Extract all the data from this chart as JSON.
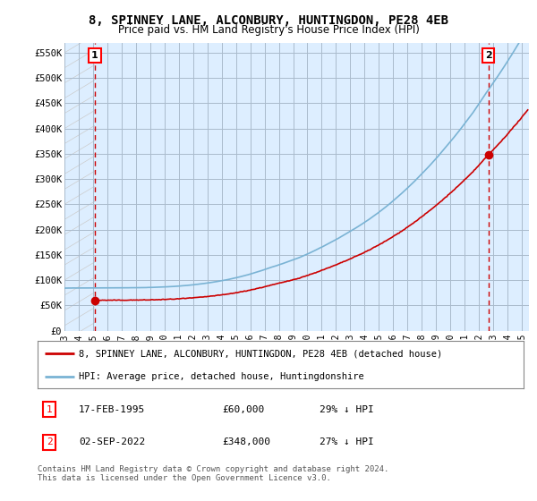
{
  "title": "8, SPINNEY LANE, ALCONBURY, HUNTINGDON, PE28 4EB",
  "subtitle": "Price paid vs. HM Land Registry's House Price Index (HPI)",
  "ylim": [
    0,
    570000
  ],
  "yticks": [
    0,
    50000,
    100000,
    150000,
    200000,
    250000,
    300000,
    350000,
    400000,
    450000,
    500000,
    550000
  ],
  "ytick_labels": [
    "£0",
    "£50K",
    "£100K",
    "£150K",
    "£200K",
    "£250K",
    "£300K",
    "£350K",
    "£400K",
    "£450K",
    "£500K",
    "£550K"
  ],
  "sale1_x": 1995.12,
  "sale1_price": 60000,
  "sale2_x": 2022.67,
  "sale2_price": 348000,
  "hpi_color": "#7ab3d4",
  "sale_color": "#cc0000",
  "background_color": "#ffffff",
  "chart_bg": "#ddeeff",
  "grid_color": "#aabbcc",
  "hatch_color": "#cccccc",
  "legend_line1": "8, SPINNEY LANE, ALCONBURY, HUNTINGDON, PE28 4EB (detached house)",
  "legend_line2": "HPI: Average price, detached house, Huntingdonshire",
  "table_row1": [
    "1",
    "17-FEB-1995",
    "£60,000",
    "29% ↓ HPI"
  ],
  "table_row2": [
    "2",
    "02-SEP-2022",
    "£348,000",
    "27% ↓ HPI"
  ],
  "footnote": "Contains HM Land Registry data © Crown copyright and database right 2024.\nThis data is licensed under the Open Government Licence v3.0.",
  "title_fontsize": 10,
  "subtitle_fontsize": 8.5,
  "xmin": 1993,
  "xmax": 2025.5
}
